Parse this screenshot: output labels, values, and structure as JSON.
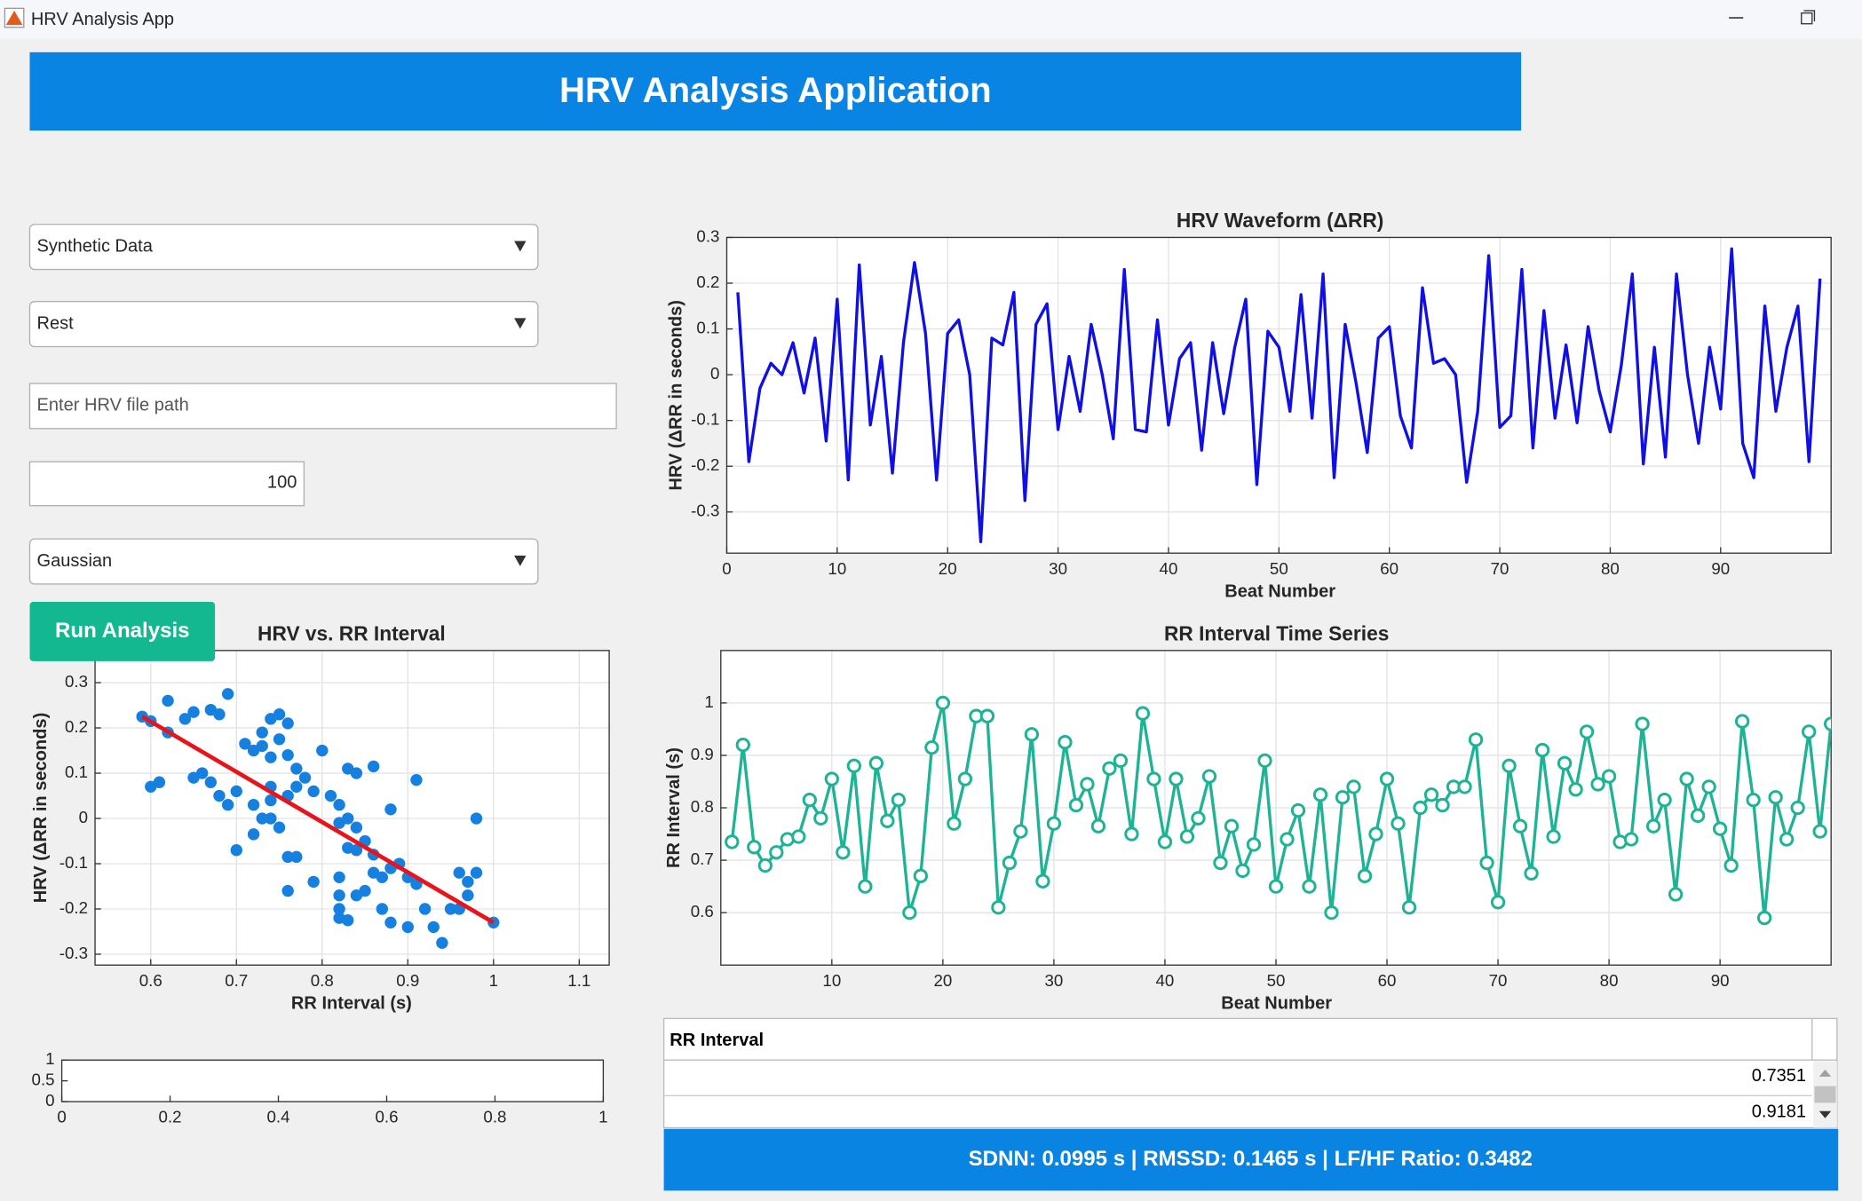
{
  "window": {
    "title": "HRV Analysis App"
  },
  "header": {
    "title": "HRV Analysis Application"
  },
  "controls": {
    "source": "Synthetic Data",
    "condition": "Rest",
    "file_path_placeholder": "Enter HRV file path",
    "count": 100,
    "noise": "Gaussian",
    "run_button": "Run Analysis"
  },
  "chart_data": [
    {
      "type": "line",
      "title": "HRV Waveform (ΔRR)",
      "x_label": "Beat Number",
      "y_label": "HRV (ΔRR in seconds)",
      "xlim": [
        0,
        100
      ],
      "ylim": [
        -0.39,
        0.3
      ],
      "xticks": [
        0,
        10,
        20,
        30,
        40,
        50,
        60,
        70,
        80,
        90
      ],
      "yticks": [
        -0.3,
        -0.2,
        -0.1,
        0,
        0.1,
        0.2,
        0.3
      ],
      "grid": true,
      "x": [
        1,
        2,
        3,
        4,
        5,
        6,
        7,
        8,
        9,
        10,
        11,
        12,
        13,
        14,
        15,
        16,
        17,
        18,
        19,
        20,
        21,
        22,
        23,
        24,
        25,
        26,
        27,
        28,
        29,
        30,
        31,
        32,
        33,
        34,
        35,
        36,
        37,
        38,
        39,
        40,
        41,
        42,
        43,
        44,
        45,
        46,
        47,
        48,
        49,
        50,
        51,
        52,
        53,
        54,
        55,
        56,
        57,
        58,
        59,
        60,
        61,
        62,
        63,
        64,
        65,
        66,
        67,
        68,
        69,
        70,
        71,
        72,
        73,
        74,
        75,
        76,
        77,
        78,
        79,
        80,
        81,
        82,
        83,
        84,
        85,
        86,
        87,
        88,
        89,
        90,
        91,
        92,
        93,
        94,
        95,
        96,
        97,
        98,
        99
      ],
      "series": [
        {
          "color": "#1010e6",
          "values": [
            0.18,
            -0.19,
            -0.03,
            0.025,
            0.0,
            0.07,
            -0.04,
            0.08,
            -0.145,
            0.165,
            -0.23,
            0.24,
            -0.11,
            0.04,
            -0.215,
            0.07,
            0.245,
            0.09,
            -0.23,
            0.09,
            0.12,
            0.0,
            -0.365,
            0.08,
            0.065,
            0.18,
            -0.275,
            0.11,
            0.155,
            -0.12,
            0.04,
            -0.08,
            0.11,
            0.0,
            -0.14,
            0.23,
            -0.12,
            -0.125,
            0.12,
            -0.11,
            0.035,
            0.07,
            -0.165,
            0.07,
            -0.085,
            0.06,
            0.165,
            -0.24,
            0.095,
            0.06,
            -0.08,
            0.175,
            -0.095,
            0.22,
            -0.225,
            0.11,
            -0.02,
            -0.17,
            0.08,
            0.105,
            -0.09,
            -0.16,
            0.19,
            0.025,
            0.035,
            0.0,
            -0.235,
            -0.08,
            0.26,
            -0.115,
            -0.09,
            0.23,
            -0.16,
            0.14,
            -0.095,
            0.065,
            -0.105,
            0.105,
            -0.035,
            -0.125,
            0.02,
            0.22,
            -0.195,
            0.06,
            -0.18,
            0.22,
            0.0,
            -0.15,
            0.06,
            -0.075,
            0.275,
            -0.15,
            -0.225,
            0.15,
            -0.08,
            0.06,
            0.15,
            -0.19,
            0.21
          ]
        }
      ]
    },
    {
      "type": "scatter",
      "title": "HRV vs. RR Interval",
      "x_label": "RR Interval (s)",
      "y_label": "HRV (ΔRR in seconds)",
      "xlim": [
        0.535,
        1.135
      ],
      "ylim": [
        -0.324,
        0.371
      ],
      "xticks": [
        0.6,
        0.7,
        0.8,
        0.9,
        1,
        1.1
      ],
      "yticks": [
        -0.3,
        -0.2,
        -0.1,
        0,
        0.1,
        0.2,
        0.3
      ],
      "grid": true,
      "color": "#1580e0",
      "x": [
        0.59,
        0.6,
        0.62,
        0.62,
        0.64,
        0.65,
        0.67,
        0.68,
        0.69,
        0.6,
        0.61,
        0.65,
        0.66,
        0.67,
        0.68,
        0.69,
        0.7,
        0.7,
        0.71,
        0.72,
        0.73,
        0.73,
        0.74,
        0.75,
        0.76,
        0.75,
        0.74,
        0.76,
        0.77,
        0.72,
        0.73,
        0.74,
        0.74,
        0.74,
        0.72,
        0.75,
        0.76,
        0.77,
        0.78,
        0.79,
        0.8,
        0.76,
        0.77,
        0.76,
        0.79,
        0.81,
        0.82,
        0.83,
        0.82,
        0.84,
        0.85,
        0.83,
        0.84,
        0.84,
        0.83,
        0.86,
        0.88,
        0.86,
        0.87,
        0.86,
        0.85,
        0.84,
        0.82,
        0.82,
        0.82,
        0.83,
        0.82,
        0.88,
        0.89,
        0.87,
        0.88,
        0.9,
        0.91,
        0.91,
        0.92,
        0.93,
        0.94,
        0.95,
        0.96,
        0.97,
        0.97,
        0.98,
        0.98,
        1.0,
        0.96,
        0.9
      ],
      "values": [
        0.225,
        0.215,
        0.26,
        0.19,
        0.22,
        0.235,
        0.24,
        0.23,
        0.275,
        0.07,
        0.08,
        0.09,
        0.1,
        0.08,
        0.05,
        0.03,
        0.06,
        -0.07,
        0.165,
        0.15,
        0.16,
        0.19,
        0.22,
        0.23,
        0.21,
        0.175,
        0.135,
        0.14,
        0.11,
        0.03,
        0.0,
        0.0,
        0.04,
        0.07,
        -0.035,
        -0.02,
        0.05,
        0.07,
        0.09,
        0.06,
        0.15,
        -0.085,
        -0.085,
        -0.16,
        -0.14,
        0.05,
        0.03,
        0.0,
        -0.01,
        -0.02,
        -0.05,
        -0.065,
        -0.07,
        0.1,
        0.11,
        0.115,
        0.02,
        -0.08,
        -0.13,
        -0.12,
        -0.16,
        -0.17,
        -0.13,
        -0.17,
        -0.2,
        -0.225,
        -0.22,
        -0.11,
        -0.1,
        -0.2,
        -0.23,
        -0.24,
        -0.145,
        0.085,
        -0.2,
        -0.24,
        -0.275,
        -0.2,
        -0.2,
        -0.17,
        -0.14,
        0.0,
        -0.12,
        -0.23,
        -0.12,
        -0.13
      ],
      "fit": {
        "color": "#e8141c",
        "x": [
          0.59,
          1.0
        ],
        "values": [
          0.225,
          -0.23
        ]
      }
    },
    {
      "type": "line",
      "title": "RR Interval Time Series",
      "x_label": "Beat Number",
      "y_label": "RR Interval (s)",
      "marker": "o",
      "xlim": [
        0,
        100
      ],
      "ylim": [
        0.5,
        1.1
      ],
      "xticks": [
        10,
        20,
        30,
        40,
        50,
        60,
        70,
        80,
        90
      ],
      "yticks": [
        0.6,
        0.7,
        0.8,
        0.9,
        1
      ],
      "grid": true,
      "x": [
        1,
        2,
        3,
        4,
        5,
        6,
        7,
        8,
        9,
        10,
        11,
        12,
        13,
        14,
        15,
        16,
        17,
        18,
        19,
        20,
        21,
        22,
        23,
        24,
        25,
        26,
        27,
        28,
        29,
        30,
        31,
        32,
        33,
        34,
        35,
        36,
        37,
        38,
        39,
        40,
        41,
        42,
        43,
        44,
        45,
        46,
        47,
        48,
        49,
        50,
        51,
        52,
        53,
        54,
        55,
        56,
        57,
        58,
        59,
        60,
        61,
        62,
        63,
        64,
        65,
        66,
        67,
        68,
        69,
        70,
        71,
        72,
        73,
        74,
        75,
        76,
        77,
        78,
        79,
        80,
        81,
        82,
        83,
        84,
        85,
        86,
        87,
        88,
        89,
        90,
        91,
        92,
        93,
        94,
        95,
        96,
        97,
        98,
        99,
        100
      ],
      "series": [
        {
          "color": "#1db394",
          "values": [
            0.735,
            0.92,
            0.725,
            0.69,
            0.715,
            0.74,
            0.745,
            0.815,
            0.78,
            0.855,
            0.715,
            0.88,
            0.65,
            0.885,
            0.775,
            0.815,
            0.6,
            0.67,
            0.915,
            1.0,
            0.77,
            0.855,
            0.975,
            0.975,
            0.61,
            0.695,
            0.755,
            0.94,
            0.66,
            0.77,
            0.925,
            0.805,
            0.845,
            0.765,
            0.875,
            0.89,
            0.75,
            0.98,
            0.855,
            0.735,
            0.855,
            0.745,
            0.78,
            0.86,
            0.695,
            0.765,
            0.68,
            0.73,
            0.89,
            0.65,
            0.74,
            0.795,
            0.65,
            0.825,
            0.6,
            0.82,
            0.84,
            0.67,
            0.75,
            0.855,
            0.77,
            0.61,
            0.8,
            0.825,
            0.805,
            0.84,
            0.84,
            0.93,
            0.695,
            0.62,
            0.88,
            0.765,
            0.675,
            0.91,
            0.745,
            0.885,
            0.835,
            0.945,
            0.845,
            0.86,
            0.735,
            0.74,
            0.96,
            0.765,
            0.815,
            0.635,
            0.855,
            0.785,
            0.84,
            0.76,
            0.69,
            0.965,
            0.815,
            0.59,
            0.82,
            0.74,
            0.8,
            0.945,
            0.755,
            0.96
          ]
        }
      ]
    },
    {
      "type": "line",
      "xlim": [
        0,
        1
      ],
      "ylim": [
        0,
        1
      ],
      "xticks": [
        0,
        0.2,
        0.4,
        0.6,
        0.8,
        1
      ],
      "yticks": [
        0,
        0.5,
        1
      ],
      "grid": false,
      "series": []
    }
  ],
  "table": {
    "header": "RR Interval",
    "rows": [
      0.7351,
      0.9181
    ]
  },
  "status": "SDNN: 0.0995 s | RMSSD: 0.1465 s | LF/HF Ratio: 0.3482"
}
